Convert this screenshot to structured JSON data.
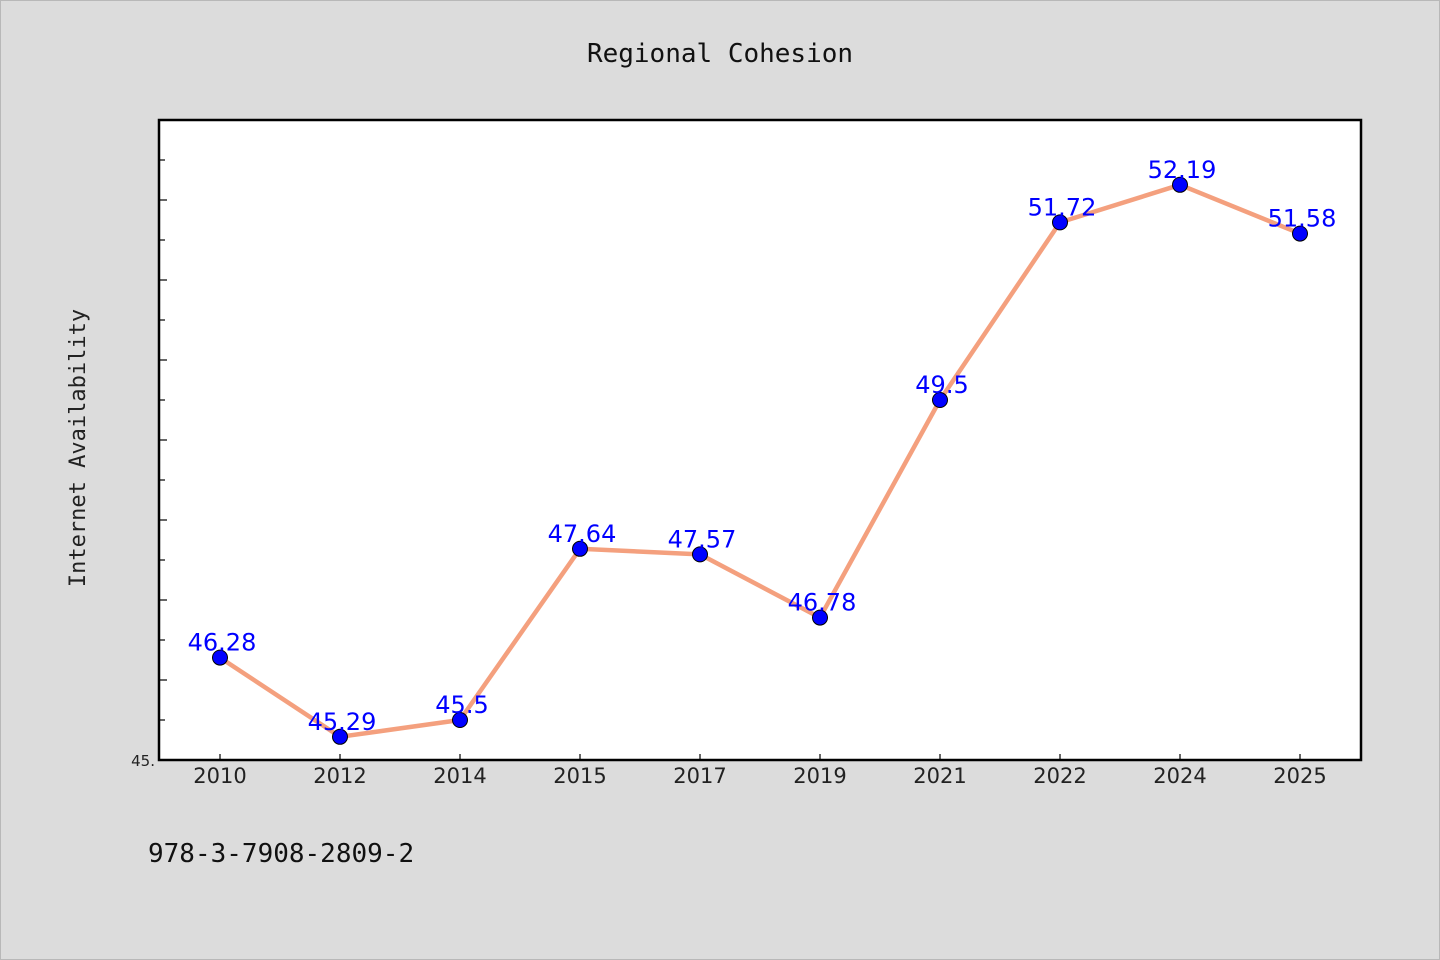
{
  "chart_data": {
    "type": "line",
    "title": "Regional Cohesion",
    "xlabel": "",
    "ylabel": "Internet Availability",
    "categories": [
      "2010",
      "2012",
      "2014",
      "2015",
      "2017",
      "2019",
      "2021",
      "2022",
      "2024",
      "2025"
    ],
    "series": [
      {
        "values": [
          46.28,
          45.29,
          45.5,
          47.64,
          47.57,
          46.78,
          49.5,
          51.72,
          52.19,
          51.58
        ],
        "labels": [
          "46.28",
          "45.29",
          "45.5",
          "47.64",
          "47.57",
          "46.78",
          "49.5",
          "51.72",
          "52.19",
          "51.58"
        ]
      }
    ],
    "ylim": [
      45,
      53
    ],
    "ytick_labels": [
      "45."
    ],
    "grid": false,
    "legend": "none",
    "colors": {
      "line": "#f4a07e",
      "marker": "#0000ff",
      "label": "#0000ff",
      "background": "#dcdcdc",
      "plot_background": "#ffffff"
    }
  },
  "footer": {
    "isbn": "978-3-7908-2809-2"
  }
}
